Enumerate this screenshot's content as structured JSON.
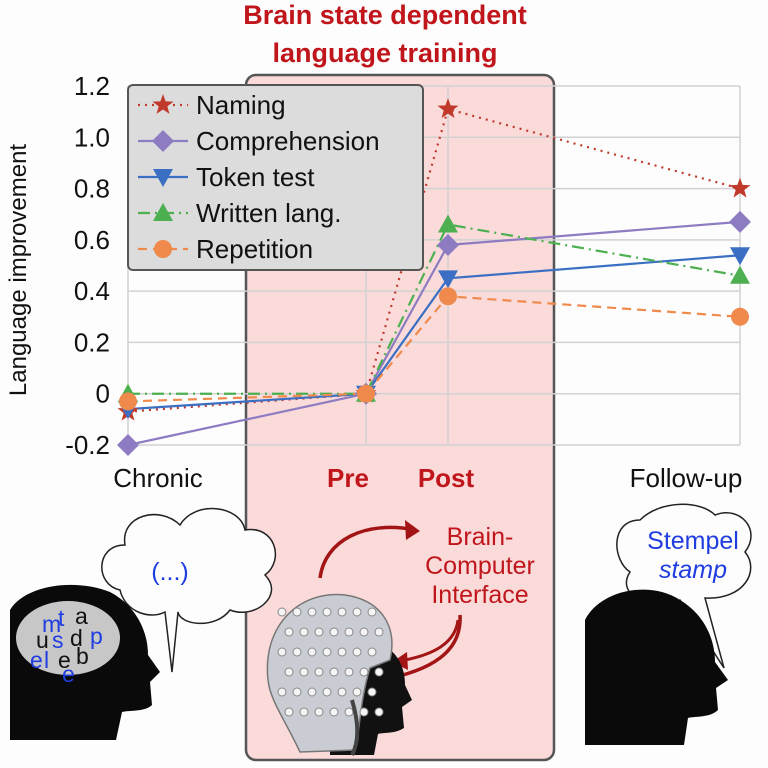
{
  "chart_data": {
    "type": "line",
    "title": [
      "Brain state dependent",
      "language training"
    ],
    "xlabel": "",
    "ylabel": "Language improvement",
    "categories": [
      "Chronic",
      "Pre",
      "Post",
      "Follow-up"
    ],
    "highlight_categories": [
      "Pre",
      "Post"
    ],
    "ylim": [
      -0.2,
      1.2
    ],
    "yticks": [
      -0.2,
      0,
      0.2,
      0.4,
      0.6,
      0.8,
      1.0,
      1.2
    ],
    "ytick_labels": [
      "-0.2",
      "0",
      "0.2",
      "0.4",
      "0.6",
      "0.8",
      "1.0",
      "1.2"
    ],
    "grid": true,
    "legend_position": "top-left",
    "series": [
      {
        "name": "Naming",
        "values": [
          -0.07,
          0,
          1.11,
          0.8
        ],
        "color": "#c0392b",
        "marker": "star",
        "dash": "dotted"
      },
      {
        "name": "Comprehension",
        "values": [
          -0.2,
          0,
          0.58,
          0.67
        ],
        "color": "#8e7cc3",
        "marker": "diamond",
        "dash": "solid"
      },
      {
        "name": "Token test",
        "values": [
          -0.06,
          0,
          0.45,
          0.54
        ],
        "color": "#3b6fc4",
        "marker": "triangle-down",
        "dash": "solid"
      },
      {
        "name": "Written lang.",
        "values": [
          0.0,
          0,
          0.66,
          0.46
        ],
        "color": "#4caf50",
        "marker": "triangle-up",
        "dash": "dashdot"
      },
      {
        "name": "Repetition",
        "values": [
          -0.03,
          0,
          0.38,
          0.3
        ],
        "color": "#ef8a4c",
        "marker": "circle",
        "dash": "dashed"
      }
    ]
  },
  "illustrations": {
    "left_bubble_text": "(...)",
    "left_head_letters": [
      "m",
      "t",
      "a",
      "u",
      "s",
      "d",
      "p",
      "e",
      "l",
      "e",
      "b",
      "e"
    ],
    "bci_label": [
      "Brain-",
      "Computer",
      "Interface"
    ],
    "right_bubble_line1": "Stempel",
    "right_bubble_line2": "stamp"
  }
}
